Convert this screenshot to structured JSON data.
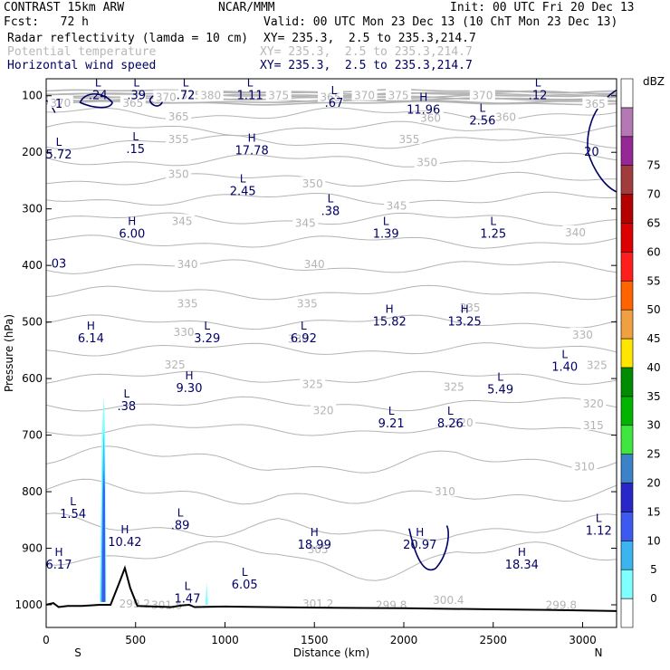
{
  "header": {
    "model": "CONTRAST 15km ARW",
    "org": "NCAR/MMM",
    "init": "Init: 00 UTC Fri 20 Dec 13",
    "fcst": "Fcst:   72 h",
    "valid": "Valid: 00 UTC Mon 23 Dec 13 (10 ChT Mon 23 Dec 13)"
  },
  "fields": [
    {
      "name": "Radar reflectivity (lamda = 10 cm)",
      "xy": "XY= 235.3,  2.5 to 235.3,214.7",
      "style": "black"
    },
    {
      "name": "Potential temperature",
      "xy": "XY= 235.3,  2.5 to 235.3,214.7",
      "style": "grey"
    },
    {
      "name": "Horizontal wind speed",
      "xy": "XY= 235.3,  2.5 to 235.3,214.7",
      "style": "navy"
    }
  ],
  "colors": {
    "theta": "#b4b4b4",
    "wind": "#000066",
    "terrain": "#000000"
  },
  "chart_data": {
    "type": "cross-section",
    "xlabel": "Distance (km)",
    "ylabel": "Pressure (hPa)",
    "xlim": [
      0,
      3190
    ],
    "ylim": [
      1040,
      70
    ],
    "x_ticks": [
      0,
      500,
      1000,
      1500,
      2000,
      2500,
      3000
    ],
    "y_ticks": [
      100,
      200,
      300,
      400,
      500,
      600,
      700,
      800,
      900,
      1000
    ],
    "x_end_labels": {
      "left": "S",
      "right": "N"
    },
    "colorbar": {
      "unit": "dBZ",
      "levels": [
        0,
        5,
        10,
        15,
        20,
        25,
        30,
        35,
        40,
        45,
        50,
        55,
        60,
        65,
        70,
        75
      ],
      "colors": [
        "#ffffff",
        "#7fffff",
        "#3cb4f0",
        "#3c5af0",
        "#2828c8",
        "#3c82c8",
        "#40e640",
        "#00b400",
        "#008c00",
        "#ffe600",
        "#f0a040",
        "#ff6400",
        "#ff1e1e",
        "#dc0000",
        "#b40000",
        "#a03c3c",
        "#962896",
        "#b478b4",
        "#ffffff"
      ]
    },
    "theta_labels": [
      {
        "x": 80,
        "p": 113,
        "text": "370"
      },
      {
        "x": 485,
        "p": 113,
        "text": "365"
      },
      {
        "x": 670,
        "p": 103,
        "text": "370"
      },
      {
        "x": 810,
        "p": 100,
        "text": "375"
      },
      {
        "x": 920,
        "p": 100,
        "text": "380"
      },
      {
        "x": 1300,
        "p": 100,
        "text": "375"
      },
      {
        "x": 1590,
        "p": 103,
        "text": "365"
      },
      {
        "x": 1780,
        "p": 100,
        "text": "370"
      },
      {
        "x": 1970,
        "p": 100,
        "text": "375"
      },
      {
        "x": 2440,
        "p": 100,
        "text": "370"
      },
      {
        "x": 3070,
        "p": 115,
        "text": "365"
      },
      {
        "x": 740,
        "p": 137,
        "text": "365"
      },
      {
        "x": 2150,
        "p": 140,
        "text": "360"
      },
      {
        "x": 2570,
        "p": 138,
        "text": "360"
      },
      {
        "x": 740,
        "p": 177,
        "text": "355"
      },
      {
        "x": 2030,
        "p": 177,
        "text": "355"
      },
      {
        "x": 740,
        "p": 239,
        "text": "350"
      },
      {
        "x": 1490,
        "p": 256,
        "text": "350"
      },
      {
        "x": 2130,
        "p": 218,
        "text": "350"
      },
      {
        "x": 1960,
        "p": 295,
        "text": "345"
      },
      {
        "x": 760,
        "p": 322,
        "text": "345"
      },
      {
        "x": 1450,
        "p": 325,
        "text": "345"
      },
      {
        "x": 2960,
        "p": 342,
        "text": "340"
      },
      {
        "x": 790,
        "p": 398,
        "text": "340"
      },
      {
        "x": 1500,
        "p": 398,
        "text": "340"
      },
      {
        "x": 790,
        "p": 468,
        "text": "335"
      },
      {
        "x": 1460,
        "p": 468,
        "text": "335"
      },
      {
        "x": 2370,
        "p": 475,
        "text": "335"
      },
      {
        "x": 770,
        "p": 518,
        "text": "330"
      },
      {
        "x": 1410,
        "p": 530,
        "text": "330"
      },
      {
        "x": 3000,
        "p": 523,
        "text": "330"
      },
      {
        "x": 720,
        "p": 576,
        "text": "325"
      },
      {
        "x": 1490,
        "p": 610,
        "text": "325"
      },
      {
        "x": 2280,
        "p": 615,
        "text": "325"
      },
      {
        "x": 3080,
        "p": 577,
        "text": "325"
      },
      {
        "x": 1550,
        "p": 657,
        "text": "320"
      },
      {
        "x": 2330,
        "p": 678,
        "text": "320"
      },
      {
        "x": 3060,
        "p": 645,
        "text": "320"
      },
      {
        "x": 3060,
        "p": 683,
        "text": "315"
      },
      {
        "x": 3010,
        "p": 756,
        "text": "310"
      },
      {
        "x": 2230,
        "p": 800,
        "text": "310"
      },
      {
        "x": 1520,
        "p": 902,
        "text": "305"
      },
      {
        "x": 495,
        "p": 998,
        "text": "299.2"
      },
      {
        "x": 675,
        "p": 1001,
        "text": "301.5"
      },
      {
        "x": 1520,
        "p": 998,
        "text": "301.2"
      },
      {
        "x": 1930,
        "p": 1001,
        "text": "299.8"
      },
      {
        "x": 2250,
        "p": 992,
        "text": "300.4"
      },
      {
        "x": 2880,
        "p": 1001,
        "text": "299.8"
      }
    ],
    "wind_extrema": [
      {
        "x": 3,
        "p": 105,
        "type": "",
        "value": "1"
      },
      {
        "x": 290,
        "p": 90,
        "type": "L",
        "value": ".24"
      },
      {
        "x": 505,
        "p": 90,
        "type": "L",
        "value": ".39"
      },
      {
        "x": 780,
        "p": 90,
        "type": "L",
        "value": ".72"
      },
      {
        "x": 1140,
        "p": 90,
        "type": "L",
        "value": "1.11"
      },
      {
        "x": 1610,
        "p": 104,
        "type": "L",
        "value": ".67"
      },
      {
        "x": 2110,
        "p": 116,
        "type": "H",
        "value": "11.96"
      },
      {
        "x": 2750,
        "p": 90,
        "type": "L",
        "value": ".12"
      },
      {
        "x": 2440,
        "p": 135,
        "type": "L",
        "value": "2.56"
      },
      {
        "x": 1150,
        "p": 188,
        "type": "H",
        "value": "17.78"
      },
      {
        "x": 3050,
        "p": 190,
        "type": "",
        "value": "20"
      },
      {
        "x": 500,
        "p": 185,
        "type": "L",
        "value": ".15"
      },
      {
        "x": -20,
        "p": 195,
        "type": "L",
        "value": "5.72"
      },
      {
        "x": 1100,
        "p": 260,
        "type": "L",
        "value": "2.45"
      },
      {
        "x": 1590,
        "p": 295,
        "type": "L",
        "value": ".38"
      },
      {
        "x": 480,
        "p": 335,
        "type": "H",
        "value": "6.00"
      },
      {
        "x": 1900,
        "p": 335,
        "type": "L",
        "value": "1.39"
      },
      {
        "x": 2500,
        "p": 335,
        "type": "L",
        "value": "1.25"
      },
      {
        "x": 20,
        "p": 388,
        "type": "",
        "value": "03"
      },
      {
        "x": 1920,
        "p": 490,
        "type": "H",
        "value": "15.82"
      },
      {
        "x": 2340,
        "p": 490,
        "type": "H",
        "value": "13.25"
      },
      {
        "x": 250,
        "p": 520,
        "type": "H",
        "value": "6.14"
      },
      {
        "x": 900,
        "p": 520,
        "type": "L",
        "value": "3.29"
      },
      {
        "x": 1440,
        "p": 520,
        "type": "L",
        "value": "6.92"
      },
      {
        "x": 2900,
        "p": 570,
        "type": "L",
        "value": "1.40"
      },
      {
        "x": 800,
        "p": 608,
        "type": "H",
        "value": "9.30"
      },
      {
        "x": 2540,
        "p": 610,
        "type": "L",
        "value": "5.49"
      },
      {
        "x": 450,
        "p": 640,
        "type": "L",
        "value": ".38"
      },
      {
        "x": 1930,
        "p": 670,
        "type": "L",
        "value": "9.21"
      },
      {
        "x": 2260,
        "p": 670,
        "type": "L",
        "value": "8.26"
      },
      {
        "x": 150,
        "p": 830,
        "type": "L",
        "value": "1.54"
      },
      {
        "x": 3090,
        "p": 860,
        "type": "L",
        "value": "1.12"
      },
      {
        "x": 750,
        "p": 850,
        "type": "L",
        "value": ".89"
      },
      {
        "x": 440,
        "p": 880,
        "type": "H",
        "value": "10.42"
      },
      {
        "x": 1500,
        "p": 885,
        "type": "H",
        "value": "18.99"
      },
      {
        "x": 2090,
        "p": 885,
        "type": "H",
        "value": "20.97"
      },
      {
        "x": 2660,
        "p": 920,
        "type": "H",
        "value": "18.34"
      },
      {
        "x": 30,
        "p": 920,
        "type": "H",
        "value": "6.17"
      },
      {
        "x": 1110,
        "p": 955,
        "type": "L",
        "value": "6.05"
      },
      {
        "x": 790,
        "p": 980,
        "type": "L",
        "value": "1.47"
      }
    ]
  }
}
